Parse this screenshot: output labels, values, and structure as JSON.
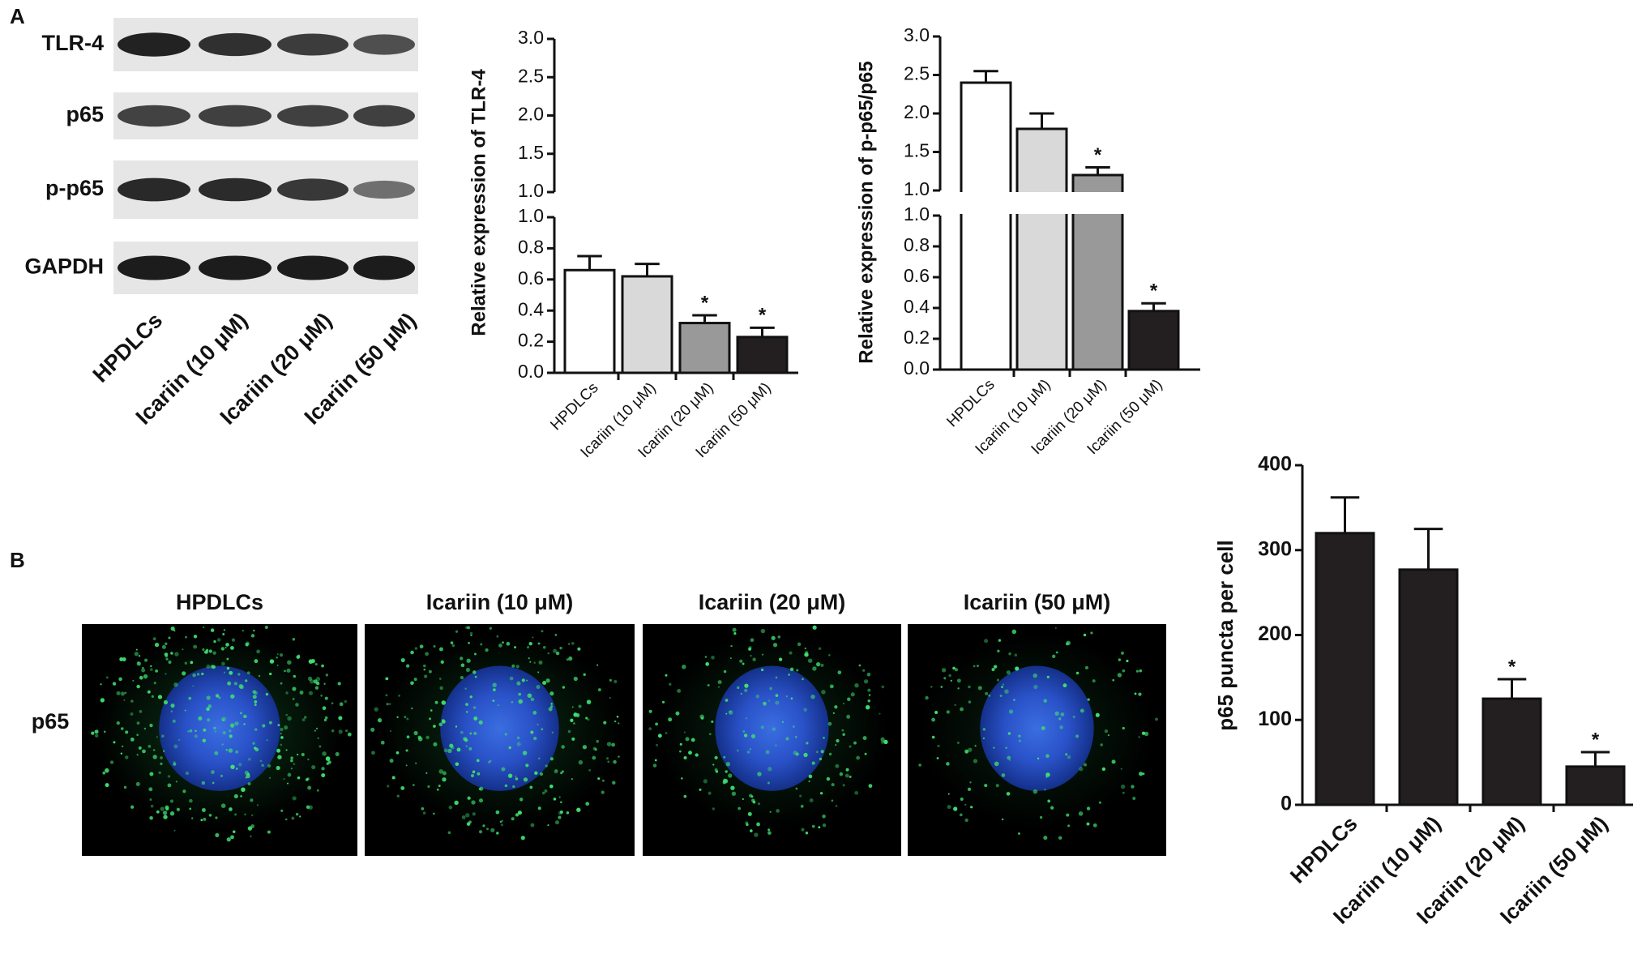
{
  "panel_labels": [
    "A",
    "B"
  ],
  "blot": {
    "proteins": [
      "TLR-4",
      "p65",
      "p-p65",
      "GAPDH"
    ],
    "categories": [
      "HPDLCs",
      "Icariin (10 μM)",
      "Icariin (20 μM)",
      "Icariin (50 μM)"
    ]
  },
  "microscopy": {
    "stain": "p65",
    "categories": [
      "HPDLCs",
      "Icariin (10 μM)",
      "Icariin (20 μM)",
      "Icariin (50 μM)"
    ]
  },
  "chart_data": [
    {
      "type": "bar",
      "y_label": "Relative expression of TLR-4",
      "categories": [
        "HPDLCs",
        "Icariin (10 μM)",
        "Icariin (20 μM)",
        "Icariin (50 μM)"
      ],
      "values": [
        0.66,
        0.62,
        0.32,
        0.23
      ],
      "errors": [
        0.09,
        0.08,
        0.05,
        0.06
      ],
      "colors": [
        "#ffffff",
        "#d9d9d9",
        "#999999",
        "#231f20"
      ],
      "significance": [
        null,
        null,
        "*",
        "*"
      ],
      "segments": [
        {
          "ylim": [
            0,
            1.0
          ],
          "yticks": [
            {
              "value": 0,
              "label": "0.0"
            },
            {
              "value": 0.2,
              "label": "0.2"
            },
            {
              "value": 0.4,
              "label": "0.4"
            },
            {
              "value": 0.6,
              "label": "0.6"
            },
            {
              "value": 0.8,
              "label": "0.8"
            },
            {
              "value": 1.0,
              "label": "1.0"
            }
          ]
        },
        {
          "ylim": [
            1.0,
            3.0
          ],
          "yticks": [
            {
              "value": 1.0,
              "label": "1.0"
            },
            {
              "value": 1.5,
              "label": "1.5"
            },
            {
              "value": 2.0,
              "label": "2.0"
            },
            {
              "value": 2.5,
              "label": "2.5"
            },
            {
              "value": 3.0,
              "label": "3.0"
            }
          ]
        }
      ]
    },
    {
      "type": "bar",
      "y_label": "Relative expression of p-p65/p65",
      "categories": [
        "HPDLCs",
        "Icariin (10 μM)",
        "Icariin (20 μM)",
        "Icariin (50 μM)"
      ],
      "values": [
        2.4,
        1.8,
        1.2,
        0.38
      ],
      "errors": [
        0.15,
        0.2,
        0.1,
        0.05
      ],
      "colors": [
        "#ffffff",
        "#d9d9d9",
        "#999999",
        "#231f20"
      ],
      "significance": [
        null,
        null,
        "*",
        "*"
      ],
      "segments": [
        {
          "ylim": [
            0,
            1.0
          ],
          "yticks": [
            {
              "value": 0,
              "label": "0.0"
            },
            {
              "value": 0.2,
              "label": "0.2"
            },
            {
              "value": 0.4,
              "label": "0.4"
            },
            {
              "value": 0.6,
              "label": "0.6"
            },
            {
              "value": 0.8,
              "label": "0.8"
            },
            {
              "value": 1.0,
              "label": "1.0"
            }
          ]
        },
        {
          "ylim": [
            1.0,
            3.0
          ],
          "yticks": [
            {
              "value": 1.0,
              "label": "1.0"
            },
            {
              "value": 1.5,
              "label": "1.5"
            },
            {
              "value": 2.0,
              "label": "2.0"
            },
            {
              "value": 2.5,
              "label": "2.5"
            },
            {
              "value": 3.0,
              "label": "3.0"
            }
          ]
        }
      ]
    },
    {
      "type": "bar",
      "y_label": "p65 puncta per cell",
      "categories": [
        "HPDLCs",
        "Icariin (10 μM)",
        "Icariin (20 μM)",
        "Icariin (50 μM)"
      ],
      "values": [
        320,
        277,
        125,
        45
      ],
      "errors": [
        42,
        48,
        23,
        17
      ],
      "colors": [
        "#231f20",
        "#231f20",
        "#231f20",
        "#231f20"
      ],
      "significance": [
        null,
        null,
        "*",
        "*"
      ],
      "ylim": [
        0,
        400
      ],
      "yticks": [
        0,
        100,
        200,
        300,
        400
      ]
    }
  ]
}
